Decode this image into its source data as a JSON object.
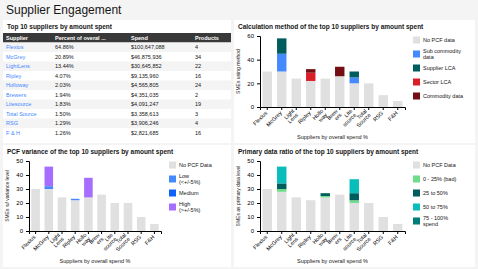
{
  "title": "Supplier Engagement",
  "chart_data": [
    {
      "type": "table",
      "title": "Top 10 suppliers by amount spent",
      "xlabel": "Supplier",
      "color": "#4589ff",
      "categories": [
        "Flexius",
        "McGrey",
        "LightLens",
        "Ripley",
        "Holloway",
        "Brewers",
        "Litesource",
        "Total Source",
        "RSG",
        "F & H"
      ],
      "series": [
        {
          "name": "Percent of overal ...",
          "values": [
            64.86,
            20.89,
            13.44,
            4.07,
            2.03,
            1.94,
            1.83,
            1.5,
            1.29,
            1.26
          ],
          "value_labels": [
            "64.86%",
            "20.89%",
            "13.44%",
            "4.07%",
            "2.03%",
            "1.94%",
            "1.83%",
            "1.50%",
            "1.29%",
            "1.26%"
          ]
        },
        {
          "name": "Spend",
          "values": [
            100647088,
            46875936,
            30645852,
            9135960,
            4565805,
            4351035,
            4091247,
            3358613,
            3906246,
            2821685
          ],
          "value_labels": [
            "$100,647,088",
            "$46,875,936",
            "$30,645,852",
            "$9,135,960",
            "$4,565,805",
            "$4,351,035",
            "$4,091,247",
            "$3,358,613",
            "$3,906,246",
            "$2,821,685"
          ]
        },
        {
          "name": "Products",
          "values": [
            4,
            34,
            22,
            16,
            24,
            2,
            19,
            3,
            4,
            16
          ]
        }
      ]
    },
    {
      "type": "bar",
      "stacked": true,
      "grid": false,
      "legend": "right",
      "title": "Calculation method of the top 10 suppliers by amount spent",
      "xlabel": "Suppliers by overall spend %",
      "ylabel": "SMEs using method",
      "categories": [
        "Flexius",
        "McGrey",
        "Light\nLens",
        "Ripley",
        "Hollo\nway",
        "Brew\ners",
        "Lite\nsource",
        "Total\nSource",
        "RSG",
        "F&H"
      ],
      "ylim": [
        0,
        60
      ],
      "yticks": [
        0,
        20,
        40,
        60
      ],
      "series": [
        {
          "name": "No PCF data",
          "color": "#e0e0e0",
          "values": [
            30,
            30,
            24,
            22,
            24,
            26,
            20,
            20,
            10,
            5
          ]
        },
        {
          "name": "Sub commodity\ndata",
          "color": "#4589ff",
          "values": [
            0,
            15,
            0,
            0,
            0,
            0,
            5,
            0,
            0,
            0
          ]
        },
        {
          "name": "Supplier LCA",
          "color": "#005d5d",
          "values": [
            0,
            13,
            0,
            0,
            0,
            0,
            5,
            0,
            0,
            0
          ]
        },
        {
          "name": "Sector LCA",
          "color": "#da1e28",
          "values": [
            0,
            0,
            0,
            7,
            0,
            0,
            0,
            0,
            0,
            0
          ]
        },
        {
          "name": "Commodity data",
          "color": "#750e13",
          "values": [
            0,
            0,
            0,
            3,
            0,
            8,
            0,
            0,
            0,
            0
          ]
        }
      ]
    },
    {
      "type": "bar",
      "stacked": true,
      "grid": false,
      "legend": "right",
      "title": "PCF variance of the top 10 suppliers by amount spent",
      "xlabel": "Suppliers by overall spend %",
      "ylabel": "SMEs w/ variance level",
      "categories": [
        "Flexius",
        "McGrey",
        "Light\nLens",
        "Ripley",
        "Hollo\nway",
        "Brew\ners",
        "Lite\nsource",
        "Total\nSource",
        "RSG",
        "F&H"
      ],
      "ylim": [
        0,
        50
      ],
      "yticks": [
        0,
        10,
        20,
        30,
        40,
        50
      ],
      "series": [
        {
          "name": "No PCF Data",
          "color": "#e0e0e0",
          "values": [
            30,
            30,
            24,
            22,
            24,
            26,
            20,
            20,
            10,
            5
          ]
        },
        {
          "name": "Low\n(<+/-5%)",
          "color": "#4589ff",
          "values": [
            0,
            2,
            0,
            1,
            0,
            0,
            0,
            0,
            0,
            0
          ]
        },
        {
          "name": "Medium",
          "color": "#0f62fe",
          "values": [
            0,
            0,
            0,
            0,
            0,
            0,
            0,
            0,
            0,
            0
          ]
        },
        {
          "name": "High\n(>+/-5%)",
          "color": "#a56eff",
          "values": [
            0,
            14,
            0,
            0,
            14,
            0,
            0,
            0,
            0,
            0
          ]
        }
      ]
    },
    {
      "type": "bar",
      "stacked": true,
      "grid": false,
      "legend": "right",
      "title": "Primary data ratio of the top 10 suppliers by amount spent",
      "xlabel": "Suppliers by overall spend %",
      "ylabel": "SMEs as primary data level",
      "categories": [
        "Flexius",
        "McGrey",
        "Light\nLens",
        "Ripley",
        "Hollo\nway",
        "Brew\ners",
        "Lite\nsource",
        "Total\nSource",
        "RSG",
        "F&H"
      ],
      "ylim": [
        0,
        50
      ],
      "yticks": [
        0,
        10,
        20,
        30,
        40,
        50
      ],
      "series": [
        {
          "name": "No PCF Data",
          "color": "#e0e0e0",
          "values": [
            30,
            28,
            24,
            22,
            24,
            26,
            20,
            20,
            10,
            5
          ]
        },
        {
          "name": "0 - 25% (bad)",
          "color": "#6fdc8c",
          "values": [
            0,
            2,
            0,
            0,
            1,
            0,
            2,
            0,
            0,
            0
          ]
        },
        {
          "name": "25 to 50%",
          "color": "#005d5d",
          "values": [
            0,
            4,
            0,
            0,
            2,
            0,
            5,
            0,
            0,
            0
          ]
        },
        {
          "name": "50 to 75%",
          "color": "#08bdba",
          "values": [
            0,
            12,
            0,
            0,
            0,
            0,
            10,
            0,
            0,
            0
          ]
        },
        {
          "name": "75 - 100%\nspend",
          "color": "#007d79",
          "values": [
            0,
            0,
            0,
            0,
            0,
            0,
            0,
            0,
            0,
            0
          ]
        }
      ]
    }
  ]
}
